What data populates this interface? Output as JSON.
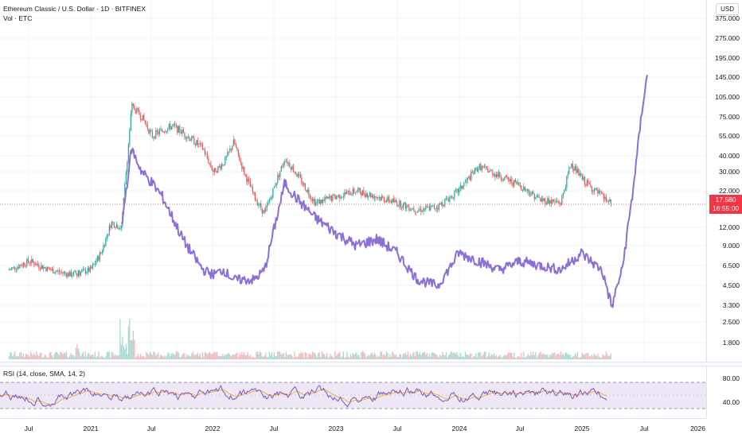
{
  "chart": {
    "symbol_line": "Ethereum Classic / U.S. Dollar · 1D · BITFINEX",
    "volume_line": "Vol · ETC",
    "currency": "USD",
    "last_price": "17.580",
    "countdown": "16:55:00",
    "price_ticks": [
      "375.000",
      "275.000",
      "195.000",
      "145.000",
      "105.000",
      "75.000",
      "55.000",
      "40.000",
      "30.000",
      "22.000",
      "12.000",
      "9.000",
      "6.500",
      "4.500",
      "3.300",
      "2.500",
      "1.800"
    ],
    "time_ticks": [
      "Jul",
      "2021",
      "Jul",
      "2022",
      "Jul",
      "2023",
      "Jul",
      "2024",
      "Jul",
      "2025",
      "Jul",
      "2026"
    ],
    "rsi_label": "RSI (14, close, SMA, 14, 2)",
    "rsi_ticks": [
      "80.00",
      "40.00"
    ],
    "colors": {
      "up": "#26a69a",
      "down": "#ef5350",
      "overlay": "#8c6fd6",
      "rsi": "#7e57c2",
      "band": "#ede7f6"
    }
  },
  "chart_data": {
    "type": "line",
    "title": "Ethereum Classic / U.S. Dollar · 1D · BITFINEX",
    "scale": "log",
    "series": [
      {
        "type": "candlestick-approx",
        "x": [
          "2020-05",
          "2020-07",
          "2020-09",
          "2020-11",
          "2021-01",
          "2021-02",
          "2021-03",
          "2021-04",
          "2021-05",
          "2021-06",
          "2021-07",
          "2021-08",
          "2021-09",
          "2021-10",
          "2021-12",
          "2022-01",
          "2022-02",
          "2022-03",
          "2022-04",
          "2022-05",
          "2022-06",
          "2022-08",
          "2022-09",
          "2022-11",
          "2023-01",
          "2023-03",
          "2023-05",
          "2023-07",
          "2023-09",
          "2023-11",
          "2024-01",
          "2024-03",
          "2024-05",
          "2024-07",
          "2024-09",
          "2024-11",
          "2024-12",
          "2025-01",
          "2025-03",
          "2025-04"
        ],
        "values": [
          6.0,
          7.0,
          6.0,
          5.5,
          6.0,
          8.0,
          13,
          12,
          90,
          75,
          55,
          60,
          65,
          58,
          45,
          30,
          35,
          50,
          30,
          20,
          15,
          38,
          30,
          18,
          20,
          22,
          20,
          18,
          16,
          17,
          22,
          33,
          28,
          24,
          19,
          18,
          35,
          27,
          20,
          17.6
        ]
      },
      {
        "type": "overlay-line",
        "x": [
          "2021-04",
          "2021-05",
          "2021-06",
          "2021-07",
          "2021-08",
          "2021-10",
          "2021-12",
          "2022-01",
          "2022-02",
          "2022-03",
          "2022-05",
          "2022-06",
          "2022-08",
          "2022-09",
          "2022-11",
          "2023-01",
          "2023-03",
          "2023-05",
          "2023-07",
          "2023-09",
          "2023-11",
          "2024-01",
          "2024-03",
          "2024-05",
          "2024-07",
          "2024-09",
          "2024-11",
          "2025-01",
          "2025-03",
          "2025-04",
          "2025-05",
          "2025-06",
          "2025-07",
          "2025-07-15"
        ],
        "values": [
          12,
          45,
          30,
          25,
          20,
          10,
          6,
          5.5,
          6,
          5,
          5,
          6,
          25,
          20,
          14,
          11,
          9,
          10,
          8,
          5,
          4.5,
          8,
          7,
          6,
          7,
          6.5,
          6,
          8,
          6,
          3.2,
          6,
          20,
          90,
          150
        ]
      }
    ]
  }
}
